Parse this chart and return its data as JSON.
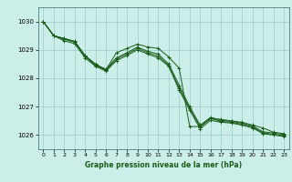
{
  "background_color": "#cceee8",
  "plot_bg_color": "#cceee8",
  "grid_color": "#99cccc",
  "line_color": "#1a5c1a",
  "marker_color": "#1a5c1a",
  "xlabel": "Graphe pression niveau de la mer (hPa)",
  "ylim": [
    1025.5,
    1030.5
  ],
  "xlim": [
    -0.5,
    23.5
  ],
  "yticks": [
    1026,
    1027,
    1028,
    1029,
    1030
  ],
  "xticks": [
    0,
    1,
    2,
    3,
    4,
    5,
    6,
    7,
    8,
    9,
    10,
    11,
    12,
    13,
    14,
    15,
    16,
    17,
    18,
    19,
    20,
    21,
    22,
    23
  ],
  "xtick_labels": [
    "0",
    "1",
    "2",
    "3",
    "4",
    "5",
    "6",
    "7",
    "8",
    "9",
    "10",
    "11",
    "12",
    "13",
    "14",
    "15",
    "16",
    "17",
    "18",
    "19",
    "20",
    "21",
    "22",
    "23"
  ],
  "series": [
    [
      1030.0,
      1029.5,
      1029.4,
      1029.3,
      1028.8,
      1028.5,
      1028.3,
      1028.9,
      1029.05,
      1029.2,
      1029.1,
      1029.05,
      1028.75,
      1028.35,
      1026.3,
      1026.3,
      1026.6,
      1026.55,
      1026.5,
      1026.45,
      1026.35,
      1026.25,
      1026.1,
      1026.05
    ],
    [
      1030.0,
      1029.5,
      1029.4,
      1029.3,
      1028.8,
      1028.48,
      1028.32,
      1028.72,
      1028.9,
      1029.1,
      1028.95,
      1028.85,
      1028.5,
      1027.75,
      1027.0,
      1026.35,
      1026.62,
      1026.52,
      1026.48,
      1026.42,
      1026.32,
      1026.12,
      1026.07,
      1026.02
    ],
    [
      1030.0,
      1029.5,
      1029.37,
      1029.27,
      1028.77,
      1028.45,
      1028.28,
      1028.68,
      1028.85,
      1029.05,
      1028.9,
      1028.78,
      1028.45,
      1027.65,
      1026.95,
      1026.28,
      1026.58,
      1026.48,
      1026.45,
      1026.38,
      1026.28,
      1026.08,
      1026.03,
      1025.98
    ],
    [
      1030.0,
      1029.5,
      1029.32,
      1029.22,
      1028.72,
      1028.42,
      1028.25,
      1028.62,
      1028.8,
      1029.0,
      1028.85,
      1028.72,
      1028.42,
      1027.58,
      1026.88,
      1026.22,
      1026.52,
      1026.45,
      1026.42,
      1026.35,
      1026.25,
      1026.05,
      1026.0,
      1025.95
    ]
  ]
}
